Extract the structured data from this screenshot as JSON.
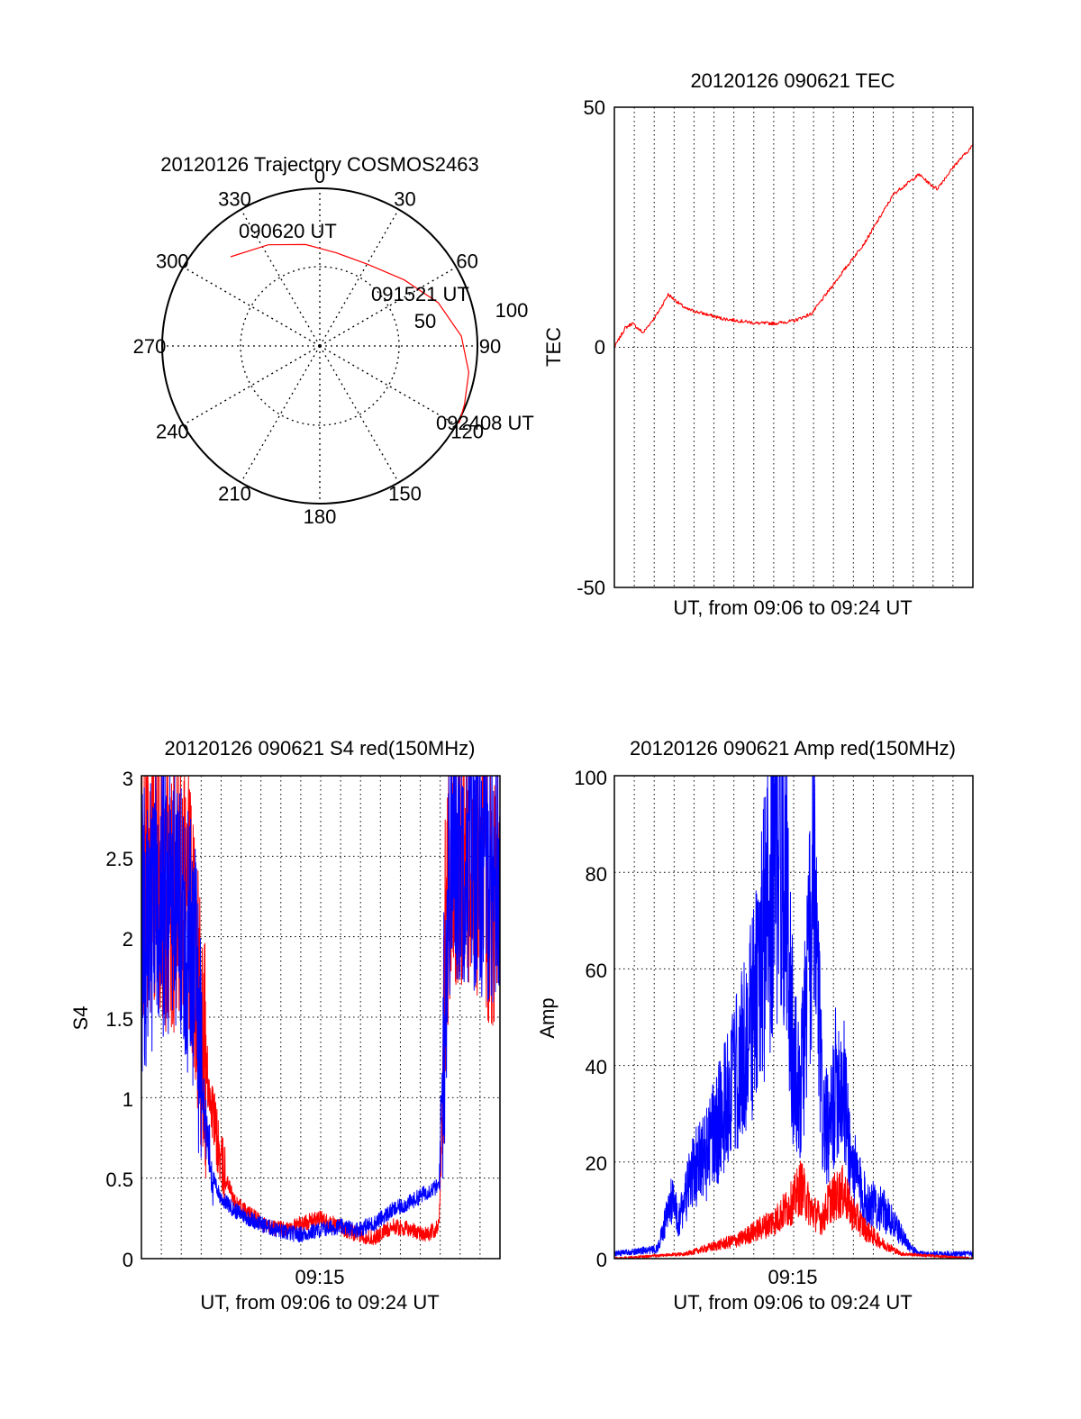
{
  "colors": {
    "red": "#ff0000",
    "blue": "#0000ff",
    "axis": "#000000",
    "grid": "#000000"
  },
  "chart_data": [
    {
      "id": "trajectory",
      "type": "scatter",
      "subtype": "polar",
      "title": "20120126 Trajectory COSMOS2463",
      "angle_labels": [
        "0",
        "30",
        "60",
        "90",
        "120",
        "150",
        "180",
        "210",
        "240",
        "270",
        "300",
        "330"
      ],
      "radial_labels": [
        "50",
        "100"
      ],
      "series": [
        {
          "color": "red",
          "points": [
            {
              "az": 315,
              "zen": 80
            },
            {
              "az": 333,
              "zen": 72
            },
            {
              "az": 352,
              "zen": 65
            },
            {
              "az": 10,
              "zen": 60
            },
            {
              "az": 30,
              "zen": 60
            },
            {
              "az": 52,
              "zen": 68
            },
            {
              "az": 70,
              "zen": 80
            },
            {
              "az": 86,
              "zen": 90
            },
            {
              "az": 100,
              "zen": 96
            },
            {
              "az": 112,
              "zen": 99
            },
            {
              "az": 119,
              "zen": 101
            }
          ]
        }
      ],
      "annotations": [
        "090620 UT",
        "091521 UT",
        "092408 UT"
      ]
    },
    {
      "id": "tec",
      "type": "line",
      "title": "20120126 090621 TEC",
      "xlabel": "UT, from 09:06 to 09:24 UT",
      "ylabel": "TEC",
      "xlim": [
        0,
        1
      ],
      "ylim": [
        -50,
        50
      ],
      "yticks": [
        "-50",
        "0",
        "50"
      ],
      "grid": true,
      "series": [
        {
          "color": "red",
          "x": [
            0,
            0.03,
            0.05,
            0.08,
            0.12,
            0.15,
            0.2,
            0.3,
            0.4,
            0.45,
            0.5,
            0.55,
            0.6,
            0.7,
            0.78,
            0.85,
            0.88,
            0.9,
            0.95,
            1.0
          ],
          "y": [
            0,
            4,
            5,
            3,
            7,
            11,
            8,
            6,
            5,
            5,
            5.5,
            7,
            12,
            22,
            32,
            36,
            34,
            33,
            38,
            42
          ]
        }
      ]
    },
    {
      "id": "s4",
      "type": "line",
      "title": "20120126 090621 S4 red(150MHz)",
      "xlabel": "UT, from 09:06 to 09:24 UT",
      "ylabel": "S4",
      "xtick_label": "09:15",
      "xlim": [
        0,
        1
      ],
      "ylim": [
        0,
        3
      ],
      "yticks": [
        "0",
        "0.5",
        "1",
        "1.5",
        "2",
        "2.5",
        "3"
      ],
      "grid": true,
      "series": [
        {
          "color": "red",
          "x": [
            0,
            0.04,
            0.08,
            0.12,
            0.15,
            0.18,
            0.2,
            0.22,
            0.26,
            0.3,
            0.35,
            0.4,
            0.45,
            0.5,
            0.55,
            0.6,
            0.65,
            0.7,
            0.75,
            0.8,
            0.83,
            0.84,
            0.85,
            0.88,
            0.92,
            0.96,
            1.0
          ],
          "y": [
            2.3,
            2.5,
            2.2,
            2.4,
            2.0,
            1.2,
            0.9,
            0.6,
            0.35,
            0.28,
            0.2,
            0.18,
            0.22,
            0.25,
            0.2,
            0.15,
            0.13,
            0.2,
            0.18,
            0.15,
            0.2,
            1.0,
            2.3,
            2.6,
            2.5,
            2.4,
            2.2
          ]
        },
        {
          "color": "blue",
          "x": [
            0,
            0.04,
            0.08,
            0.12,
            0.15,
            0.18,
            0.2,
            0.22,
            0.26,
            0.3,
            0.35,
            0.4,
            0.45,
            0.5,
            0.55,
            0.6,
            0.65,
            0.7,
            0.75,
            0.8,
            0.83,
            0.84,
            0.86,
            0.9,
            0.95,
            1.0
          ],
          "y": [
            2.0,
            2.2,
            2.3,
            2.1,
            1.8,
            0.8,
            0.5,
            0.38,
            0.3,
            0.25,
            0.2,
            0.16,
            0.15,
            0.18,
            0.2,
            0.18,
            0.22,
            0.3,
            0.35,
            0.42,
            0.45,
            1.2,
            2.5,
            2.6,
            2.5,
            2.4
          ]
        }
      ]
    },
    {
      "id": "amp",
      "type": "line",
      "title": "20120126 090621 Amp red(150MHz)",
      "xlabel": "UT, from 09:06 to 09:24 UT",
      "ylabel": "Amp",
      "xtick_label": "09:15",
      "xlim": [
        0,
        1
      ],
      "ylim": [
        0,
        100
      ],
      "yticks": [
        "0",
        "20",
        "40",
        "60",
        "80",
        "100"
      ],
      "grid": true,
      "series": [
        {
          "color": "blue",
          "x": [
            0,
            0.12,
            0.16,
            0.18,
            0.22,
            0.26,
            0.3,
            0.35,
            0.4,
            0.44,
            0.47,
            0.5,
            0.52,
            0.55,
            0.56,
            0.58,
            0.6,
            0.62,
            0.64,
            0.66,
            0.7,
            0.75,
            0.8,
            0.83,
            0.85,
            1.0
          ],
          "y": [
            1,
            2,
            12,
            8,
            18,
            22,
            30,
            40,
            55,
            80,
            90,
            40,
            35,
            70,
            72,
            30,
            25,
            38,
            35,
            20,
            12,
            10,
            5,
            2,
            1,
            1
          ]
        },
        {
          "color": "red",
          "x": [
            0,
            0.2,
            0.25,
            0.3,
            0.35,
            0.4,
            0.45,
            0.5,
            0.52,
            0.55,
            0.58,
            0.6,
            0.64,
            0.66,
            0.7,
            0.75,
            0.8,
            1.0
          ],
          "y": [
            0,
            1,
            2,
            3,
            4,
            6,
            8,
            12,
            15,
            10,
            8,
            12,
            14,
            10,
            6,
            3,
            1,
            0
          ]
        }
      ]
    }
  ]
}
